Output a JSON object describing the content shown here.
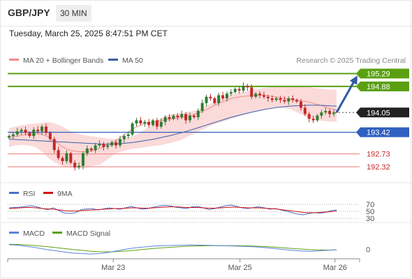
{
  "header": {
    "pair": "GBP/JPY",
    "timeframe": "30 MIN",
    "datetime": "Tuesday, March 25, 2025 8:47:51 PM CET"
  },
  "colors": {
    "up": "#2e7d32",
    "down": "#c62828",
    "ma20": "#f28a8a",
    "ma50": "#3b5ea8",
    "bollinger": "#fbdada",
    "support": "#3060c0",
    "resist_green": "#5aa012",
    "resist_red": "#f09090",
    "arrow": "#2f5aa0",
    "rsi": "#4a6fd0",
    "rsi_ma": "#cc1111",
    "macd": "#5b82d8",
    "macd_signal": "#5aa012"
  },
  "chart_data": [
    {
      "type": "line",
      "title": "",
      "legend": [
        "MA 20 + Bollinger Bands",
        "MA 50"
      ],
      "credit": "Research © 2025 Trading Central",
      "ylim": [
        191.9,
        195.5
      ],
      "levels": [
        {
          "value": 195.29,
          "label": "195.29",
          "kind": "resistance",
          "color": "#5aa012",
          "filled": true
        },
        {
          "value": 194.88,
          "label": "194.88",
          "kind": "resistance",
          "color": "#5aa012",
          "filled": true
        },
        {
          "value": 194.05,
          "label": "194.05",
          "kind": "last-price",
          "color": "#222222",
          "filled": true
        },
        {
          "value": 193.42,
          "label": "193.42",
          "kind": "support",
          "color": "#3060c0",
          "filled": true
        },
        {
          "value": 192.73,
          "label": "192.73",
          "kind": "support",
          "color": "#f09090",
          "filled": false
        },
        {
          "value": 192.32,
          "label": "192.32",
          "kind": "support",
          "color": "#f09090",
          "filled": false
        }
      ],
      "close": [
        193.3,
        193.35,
        193.45,
        193.5,
        193.4,
        193.3,
        193.5,
        193.45,
        193.6,
        193.4,
        193.2,
        192.85,
        192.6,
        192.5,
        192.75,
        192.45,
        192.3,
        192.35,
        192.75,
        192.9,
        192.85,
        193.0,
        193.05,
        192.95,
        193.0,
        193.1,
        193.0,
        193.2,
        193.3,
        193.35,
        193.7,
        193.8,
        193.7,
        193.75,
        193.65,
        193.8,
        193.6,
        193.75,
        193.9,
        193.85,
        193.95,
        193.9,
        194.0,
        193.8,
        193.95,
        193.9,
        194.1,
        194.35,
        194.55,
        194.5,
        194.35,
        194.6,
        194.5,
        194.65,
        194.7,
        194.8,
        194.75,
        194.9,
        194.85,
        194.55,
        194.65,
        194.6,
        194.55,
        194.5,
        194.45,
        194.5,
        194.45,
        194.4,
        194.5,
        194.45,
        194.4,
        194.2,
        194.0,
        193.85,
        193.8,
        193.95,
        194.05,
        194.1,
        194.0,
        194.05
      ],
      "ma20": [
        193.25,
        193.28,
        193.3,
        193.33,
        193.35,
        193.36,
        193.37,
        193.36,
        193.33,
        193.27,
        193.18,
        193.08,
        192.98,
        192.9,
        192.85,
        192.82,
        192.8,
        192.8,
        192.8,
        192.83,
        192.87,
        192.92,
        192.98,
        193.05,
        193.12,
        193.2,
        193.3,
        193.4,
        193.5,
        193.58,
        193.64,
        193.68,
        193.72,
        193.75,
        193.77,
        193.8,
        193.82,
        193.84,
        193.86,
        193.88,
        193.9,
        193.93,
        193.97,
        194.02,
        194.07,
        194.13,
        194.2,
        194.27,
        194.34,
        194.4,
        194.45,
        194.5,
        194.53,
        194.55,
        194.57,
        194.58,
        194.59,
        194.6,
        194.6,
        194.59,
        194.57,
        194.55,
        194.52,
        194.5,
        194.48,
        194.46,
        194.44,
        194.42,
        194.4,
        194.37,
        194.33,
        194.29,
        194.25,
        194.2,
        194.16,
        194.13
      ],
      "bb_upper": [
        193.55,
        193.6,
        193.65,
        193.68,
        193.7,
        193.72,
        193.75,
        193.7,
        193.62,
        193.5,
        193.4,
        193.35,
        193.3,
        193.28,
        193.25,
        193.22,
        193.2,
        193.22,
        193.25,
        193.3,
        193.4,
        193.55,
        193.7,
        193.85,
        193.95,
        194.0,
        194.02,
        194.05,
        194.1,
        194.15,
        194.25,
        194.35,
        194.45,
        194.55,
        194.62,
        194.68,
        194.72,
        194.76,
        194.8,
        194.83,
        194.86,
        194.88,
        194.9,
        194.9,
        194.9,
        194.88,
        194.85,
        194.82,
        194.8,
        194.78,
        194.78
      ],
      "bb_lower": [
        192.95,
        193.0,
        193.02,
        193.0,
        192.95,
        192.8,
        192.6,
        192.45,
        192.35,
        192.3,
        192.28,
        192.28,
        192.3,
        192.35,
        192.4,
        192.55,
        192.7,
        192.8,
        192.85,
        192.9,
        192.92,
        192.95,
        192.98,
        193.0,
        193.05,
        193.1,
        193.15,
        193.25,
        193.35,
        193.45,
        193.55,
        193.65,
        193.72,
        193.78,
        193.85,
        193.92,
        193.98,
        194.05,
        194.1,
        194.15,
        194.2,
        194.22,
        194.2,
        194.15,
        194.05,
        193.95,
        193.85,
        193.8,
        193.78,
        193.76,
        193.75
      ],
      "ma50": [
        193.2,
        193.19,
        193.18,
        193.17,
        193.16,
        193.15,
        193.14,
        193.13,
        193.12,
        193.11,
        193.1,
        193.09,
        193.08,
        193.07,
        193.06,
        193.05,
        193.04,
        193.04,
        193.05,
        193.06,
        193.08,
        193.1,
        193.13,
        193.16,
        193.19,
        193.23,
        193.27,
        193.31,
        193.36,
        193.41,
        193.46,
        193.52,
        193.58,
        193.64,
        193.7,
        193.76,
        193.82,
        193.88,
        193.93,
        193.98,
        194.03,
        194.07,
        194.11,
        194.15,
        194.18,
        194.21,
        194.23,
        194.25,
        194.26,
        194.27,
        194.28,
        194.28,
        194.28,
        194.27,
        194.26,
        194.25
      ],
      "projection": {
        "from": 194.05,
        "to": 195.15
      }
    },
    {
      "type": "line",
      "legend": [
        "RSI",
        "9MA"
      ],
      "ylim": [
        20,
        80
      ],
      "levels": [
        70,
        50,
        30
      ],
      "level_labels": [
        "70",
        "50",
        "30"
      ],
      "rsi": [
        60,
        61,
        62,
        64,
        66,
        63,
        58,
        55,
        60,
        52,
        45,
        44,
        46,
        55,
        57,
        58,
        54,
        57,
        60,
        58,
        56,
        60,
        64,
        60,
        56,
        58,
        62,
        65,
        67,
        66,
        62,
        60,
        58,
        63,
        64,
        60,
        55,
        58,
        62,
        66,
        68,
        64,
        60,
        58,
        61,
        63,
        60,
        56,
        58,
        54,
        50,
        46,
        42,
        40,
        44,
        46,
        45,
        47,
        52,
        54
      ],
      "ma9": [
        58,
        59,
        60,
        61,
        61,
        60,
        58,
        57,
        56,
        54,
        52,
        51,
        51,
        52,
        53,
        54,
        55,
        56,
        57,
        58,
        58,
        59,
        60,
        60,
        59,
        59,
        60,
        61,
        62,
        63,
        63,
        62,
        61,
        61,
        61,
        60,
        59,
        59,
        60,
        61,
        62,
        62,
        61,
        60,
        60,
        60,
        59,
        58,
        57,
        55,
        53,
        51,
        49,
        47,
        46,
        46,
        47,
        48,
        49,
        51
      ]
    },
    {
      "type": "line",
      "legend": [
        "MACD",
        "MACD Signal"
      ],
      "ylim": [
        -1.2,
        1.2
      ],
      "zero_label": "0",
      "macd": [
        0.55,
        0.5,
        0.35,
        0.2,
        0.0,
        -0.15,
        -0.3,
        -0.45,
        -0.5,
        -0.55,
        -0.5,
        -0.35,
        -0.15,
        0.05,
        0.2,
        0.3,
        0.4,
        0.45,
        0.48,
        0.5,
        0.52,
        0.5,
        0.48,
        0.45,
        0.42,
        0.38,
        0.35,
        0.3,
        0.22,
        0.12,
        0.0,
        -0.1,
        -0.18,
        -0.22,
        -0.18,
        -0.1,
        -0.05
      ],
      "signal": [
        0.6,
        0.58,
        0.52,
        0.44,
        0.34,
        0.22,
        0.1,
        -0.02,
        -0.12,
        -0.22,
        -0.28,
        -0.3,
        -0.26,
        -0.18,
        -0.08,
        0.02,
        0.12,
        0.2,
        0.27,
        0.33,
        0.38,
        0.41,
        0.43,
        0.44,
        0.44,
        0.43,
        0.41,
        0.38,
        0.34,
        0.28,
        0.2,
        0.12,
        0.04,
        -0.03,
        -0.07,
        -0.08,
        -0.07
      ]
    }
  ],
  "x_axis": {
    "ticks": [
      "Mar 23",
      "Mar 25",
      "Mar 26"
    ],
    "tick_positions": [
      0.3,
      0.66,
      0.93
    ]
  }
}
